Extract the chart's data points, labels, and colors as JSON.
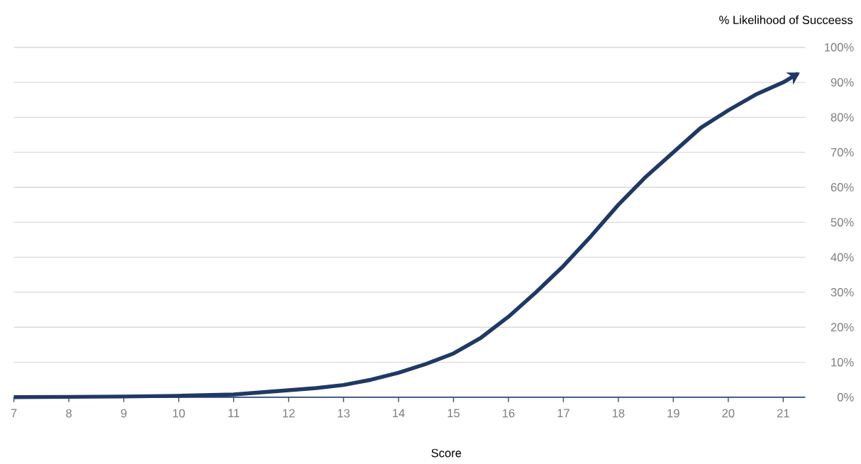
{
  "chart_data": {
    "type": "line",
    "ylabel": "% Likelihood of Succeess",
    "xlabel": "Score",
    "x": [
      7,
      8,
      9,
      10,
      11,
      12,
      12.5,
      13,
      13.5,
      14,
      14.5,
      15,
      15.5,
      16,
      16.5,
      17,
      17.5,
      18,
      18.5,
      19,
      19.5,
      20,
      20.5,
      21,
      21.27
    ],
    "series": [
      {
        "color": "#203864",
        "values": [
          0,
          0.1,
          0.2,
          0.4,
          0.8,
          2,
          2.6,
          3.5,
          5,
          7,
          9.5,
          12.5,
          17,
          23,
          30,
          37.5,
          46,
          55,
          63,
          70,
          77,
          82,
          86.5,
          90,
          92.5
        ]
      }
    ],
    "xlim": [
      7,
      21.4
    ],
    "ylim": [
      0,
      100
    ],
    "xticks": [
      7,
      8,
      9,
      10,
      11,
      12,
      13,
      14,
      15,
      16,
      17,
      18,
      19,
      20,
      21
    ],
    "yticks": [
      {
        "value": 0,
        "label": "0%"
      },
      {
        "value": 10,
        "label": "10%"
      },
      {
        "value": 20,
        "label": "20%"
      },
      {
        "value": 30,
        "label": "30%"
      },
      {
        "value": 40,
        "label": "40%"
      },
      {
        "value": 50,
        "label": "50%"
      },
      {
        "value": 60,
        "label": "60%"
      },
      {
        "value": 70,
        "label": "70%"
      },
      {
        "value": 80,
        "label": "80%"
      },
      {
        "value": 90,
        "label": "90%"
      },
      {
        "value": 100,
        "label": "100%"
      }
    ],
    "grid": "y",
    "marker": "none",
    "line_style": "solid"
  }
}
